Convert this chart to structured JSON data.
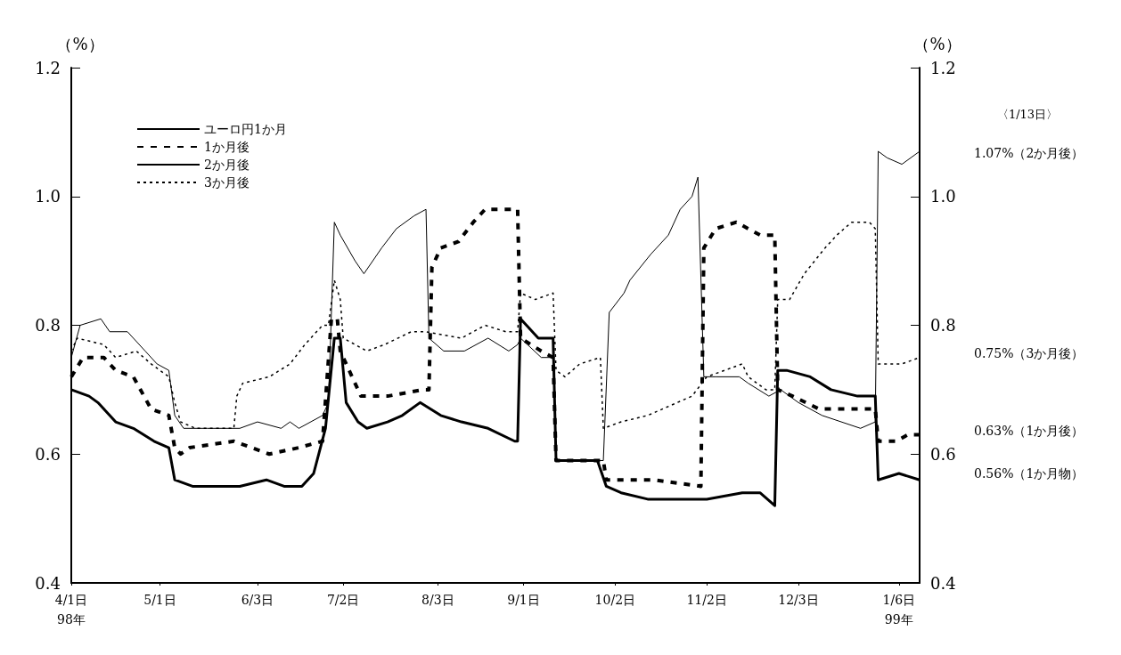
{
  "chart_data": {
    "type": "line",
    "ylabel": "（%）",
    "y2label": "（%）",
    "xlim": [
      "1998-04-01",
      "1999-01-13"
    ],
    "xticks": [
      {
        "value": "1998-04-01",
        "label": "4/1日\n98年"
      },
      {
        "value": "1998-05-01",
        "label": "5/1日"
      },
      {
        "value": "1998-06-03",
        "label": "6/3日"
      },
      {
        "value": "1998-07-02",
        "label": "7/2日"
      },
      {
        "value": "1998-08-03",
        "label": "8/3日"
      },
      {
        "value": "1998-09-01",
        "label": "9/1日"
      },
      {
        "value": "1998-10-02",
        "label": "10/2日"
      },
      {
        "value": "1998-11-02",
        "label": "11/2日"
      },
      {
        "value": "1998-12-03",
        "label": "12/3日"
      },
      {
        "value": "1999-01-06",
        "label": "1/6日\n99年"
      }
    ],
    "ylim": [
      0.4,
      1.2
    ],
    "yticks": [
      0.4,
      0.6,
      0.8,
      {
        "value": 1,
        "label": "1.0"
      },
      1.2
    ],
    "y2lim": [
      0.4,
      1.2
    ],
    "y2ticks": [
      0.4,
      0.6,
      0.8,
      {
        "value": 1,
        "label": "1.0"
      },
      1.2
    ],
    "grid": false,
    "legend": "top left",
    "annotations": [
      "〈1/13日〉",
      "1.07%（2か月後）",
      "0.75%（3か月後）",
      "0.63%（1か月後）",
      "0.56%（1か月物）"
    ],
    "series": [
      {
        "name": "ユーロ円1か月",
        "color": "#000000",
        "line_style": "solid",
        "x": [
          "1998-04-01",
          "1998-04-07",
          "1998-04-10",
          "1998-04-16",
          "1998-04-22",
          "1998-04-29",
          "1998-05-04",
          "1998-05-06",
          "1998-05-12",
          "1998-05-28",
          "1998-06-06",
          "1998-06-12",
          "1998-06-18",
          "1998-06-22",
          "1998-06-26",
          "1998-06-29",
          "1998-07-01",
          "1998-07-03",
          "1998-07-07",
          "1998-07-10",
          "1998-07-17",
          "1998-07-22",
          "1998-07-28",
          "1998-08-04",
          "1998-08-11",
          "1998-08-20",
          "1998-08-29",
          "1998-08-30",
          "1998-08-31",
          "1998-09-02",
          "1998-09-06",
          "1998-09-11",
          "1998-09-12",
          "1998-09-26",
          "1998-09-29",
          "1998-10-04",
          "1998-10-13",
          "1998-10-21",
          "1998-11-02",
          "1998-11-14",
          "1998-11-20",
          "1998-11-25",
          "1998-11-26",
          "1998-11-29",
          "1998-12-07",
          "1998-12-14",
          "1998-12-23",
          "1998-12-29",
          "1998-12-30",
          "1999-01-06",
          "1999-01-13"
        ],
        "values": [
          0.7,
          0.69,
          0.68,
          0.65,
          0.64,
          0.62,
          0.61,
          0.56,
          0.55,
          0.55,
          0.56,
          0.55,
          0.55,
          0.57,
          0.64,
          0.78,
          0.78,
          0.68,
          0.65,
          0.64,
          0.65,
          0.66,
          0.68,
          0.66,
          0.65,
          0.64,
          0.62,
          0.62,
          0.81,
          0.8,
          0.78,
          0.78,
          0.59,
          0.59,
          0.55,
          0.54,
          0.53,
          0.53,
          0.53,
          0.54,
          0.54,
          0.52,
          0.73,
          0.73,
          0.72,
          0.7,
          0.69,
          0.69,
          0.56,
          0.57,
          0.56
        ]
      },
      {
        "name": "1か月後",
        "color": "#000000",
        "line_style": "dashed",
        "x": [
          "1998-04-01",
          "1998-04-05",
          "1998-04-12",
          "1998-04-16",
          "1998-04-22",
          "1998-04-28",
          "1998-05-04",
          "1998-05-06",
          "1998-05-08",
          "1998-05-11",
          "1998-05-26",
          "1998-06-07",
          "1998-06-17",
          "1998-06-25",
          "1998-06-28",
          "1998-06-30",
          "1998-07-01",
          "1998-07-05",
          "1998-07-08",
          "1998-07-17",
          "1998-07-29",
          "1998-07-31",
          "1998-08-01",
          "1998-08-04",
          "1998-08-10",
          "1998-08-15",
          "1998-08-19",
          "1998-08-28",
          "1998-08-30",
          "1998-08-31",
          "1998-09-07",
          "1998-09-11",
          "1998-09-12",
          "1998-09-28",
          "1998-09-29",
          "1998-10-15",
          "1998-10-31",
          "1998-11-01",
          "1998-11-05",
          "1998-11-12",
          "1998-11-16",
          "1998-11-20",
          "1998-11-25",
          "1998-11-26",
          "1998-12-01",
          "1998-12-10",
          "1998-12-18",
          "1998-12-29",
          "1998-12-30",
          "1999-01-05",
          "1999-01-09",
          "1999-01-13"
        ],
        "values": [
          0.72,
          0.75,
          0.75,
          0.73,
          0.72,
          0.67,
          0.66,
          0.61,
          0.6,
          0.61,
          0.62,
          0.6,
          0.61,
          0.62,
          0.81,
          0.81,
          0.76,
          0.72,
          0.69,
          0.69,
          0.7,
          0.7,
          0.89,
          0.92,
          0.93,
          0.96,
          0.98,
          0.98,
          0.98,
          0.78,
          0.76,
          0.75,
          0.59,
          0.59,
          0.56,
          0.56,
          0.55,
          0.92,
          0.95,
          0.96,
          0.95,
          0.94,
          0.94,
          0.7,
          0.69,
          0.67,
          0.67,
          0.67,
          0.62,
          0.62,
          0.63,
          0.63
        ]
      },
      {
        "name": "2か月後",
        "color": "#000000",
        "line_style": "solid",
        "x": [
          "1998-04-01",
          "1998-04-04",
          "1998-04-11",
          "1998-04-14",
          "1998-04-20",
          "1998-04-26",
          "1998-04-30",
          "1998-05-04",
          "1998-05-06",
          "1998-05-09",
          "1998-05-17",
          "1998-05-28",
          "1998-06-03",
          "1998-06-11",
          "1998-06-14",
          "1998-06-17",
          "1998-06-25",
          "1998-06-27",
          "1998-06-29",
          "1998-07-01",
          "1998-07-06",
          "1998-07-09",
          "1998-07-15",
          "1998-07-20",
          "1998-07-26",
          "1998-07-30",
          "1998-07-31",
          "1998-08-05",
          "1998-08-12",
          "1998-08-20",
          "1998-08-27",
          "1998-08-30",
          "1998-08-31",
          "1998-09-07",
          "1998-09-11",
          "1998-09-12",
          "1998-09-28",
          "1998-09-30",
          "1998-10-05",
          "1998-10-07",
          "1998-10-14",
          "1998-10-20",
          "1998-10-24",
          "1998-10-28",
          "1998-10-30",
          "1998-11-01",
          "1998-11-05",
          "1998-11-13",
          "1998-11-16",
          "1998-11-23",
          "1998-11-27",
          "1998-12-03",
          "1998-12-11",
          "1998-12-24",
          "1998-12-29",
          "1998-12-30",
          "1999-01-02",
          "1999-01-07",
          "1999-01-13"
        ],
        "values": [
          0.75,
          0.8,
          0.81,
          0.79,
          0.79,
          0.76,
          0.74,
          0.73,
          0.66,
          0.64,
          0.64,
          0.64,
          0.65,
          0.64,
          0.65,
          0.64,
          0.66,
          0.68,
          0.96,
          0.94,
          0.9,
          0.88,
          0.92,
          0.95,
          0.97,
          0.98,
          0.78,
          0.76,
          0.76,
          0.78,
          0.76,
          0.77,
          0.78,
          0.75,
          0.75,
          0.59,
          0.59,
          0.82,
          0.85,
          0.87,
          0.91,
          0.94,
          0.98,
          1.0,
          1.03,
          0.72,
          0.72,
          0.72,
          0.71,
          0.69,
          0.7,
          0.68,
          0.66,
          0.64,
          0.65,
          1.07,
          1.06,
          1.05,
          1.07
        ]
      },
      {
        "name": "3か月後",
        "color": "#000000",
        "line_style": "dotted",
        "x": [
          "1998-04-01",
          "1998-04-03",
          "1998-04-12",
          "1998-04-16",
          "1998-04-23",
          "1998-04-28",
          "1998-05-04",
          "1998-05-06",
          "1998-05-08",
          "1998-05-13",
          "1998-05-26",
          "1998-05-27",
          "1998-05-29",
          "1998-06-07",
          "1998-06-14",
          "1998-06-19",
          "1998-06-25",
          "1998-06-27",
          "1998-06-29",
          "1998-07-01",
          "1998-07-02",
          "1998-07-06",
          "1998-07-10",
          "1998-07-16",
          "1998-07-25",
          "1998-07-30",
          "1998-08-11",
          "1998-08-19",
          "1998-08-26",
          "1998-08-30",
          "1998-08-31",
          "1998-09-05",
          "1998-09-11",
          "1998-09-12",
          "1998-09-15",
          "1998-09-20",
          "1998-09-27",
          "1998-09-28",
          "1998-10-04",
          "1998-10-13",
          "1998-10-23",
          "1998-10-28",
          "1998-11-02",
          "1998-11-08",
          "1998-11-14",
          "1998-11-16",
          "1998-11-22",
          "1998-11-25",
          "1998-11-26",
          "1998-11-30",
          "1998-12-05",
          "1998-12-12",
          "1998-12-16",
          "1998-12-21",
          "1998-12-27",
          "1998-12-29",
          "1998-12-30",
          "1999-01-02",
          "1999-01-07",
          "1999-01-13"
        ],
        "values": [
          0.76,
          0.78,
          0.77,
          0.75,
          0.76,
          0.74,
          0.72,
          0.68,
          0.65,
          0.64,
          0.64,
          0.69,
          0.71,
          0.72,
          0.74,
          0.77,
          0.8,
          0.8,
          0.87,
          0.84,
          0.78,
          0.77,
          0.76,
          0.77,
          0.79,
          0.79,
          0.78,
          0.8,
          0.79,
          0.79,
          0.85,
          0.84,
          0.85,
          0.73,
          0.72,
          0.74,
          0.75,
          0.64,
          0.65,
          0.66,
          0.68,
          0.69,
          0.72,
          0.73,
          0.74,
          0.72,
          0.7,
          0.7,
          0.84,
          0.84,
          0.88,
          0.92,
          0.94,
          0.96,
          0.96,
          0.95,
          0.74,
          0.74,
          0.74,
          0.75
        ]
      }
    ]
  }
}
